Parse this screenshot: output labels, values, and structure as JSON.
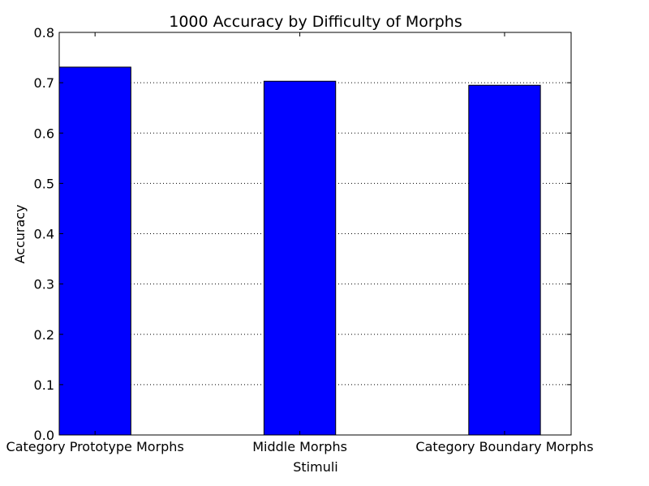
{
  "chart_data": {
    "type": "bar",
    "title": "1000 Accuracy by Difficulty of Morphs",
    "xlabel": "Stimuli",
    "ylabel": "Accuracy",
    "categories": [
      "Category Prototype Morphs",
      "Middle Morphs",
      "Category Boundary Morphs"
    ],
    "values": [
      0.731,
      0.703,
      0.695
    ],
    "ylim": [
      0.0,
      0.8
    ],
    "yticks": [
      "0.0",
      "0.1",
      "0.2",
      "0.3",
      "0.4",
      "0.5",
      "0.6",
      "0.7",
      "0.8"
    ],
    "grid": "horizontal dotted",
    "bar_color": "#0000ff",
    "legend": "none"
  }
}
